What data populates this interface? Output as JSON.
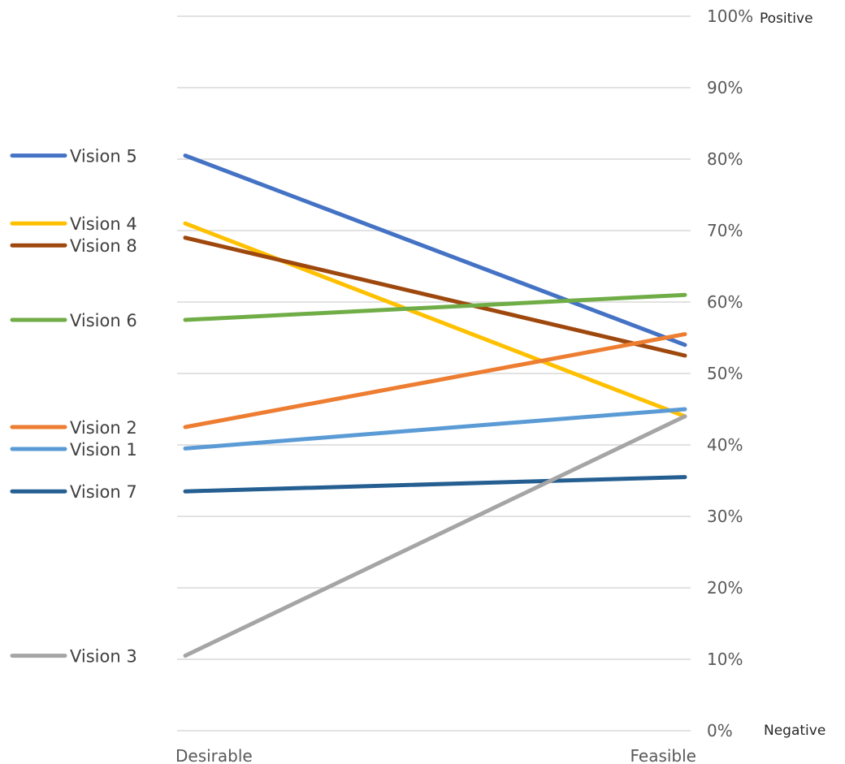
{
  "chart_data": {
    "type": "line",
    "categories": [
      "Desirable",
      "Feasible"
    ],
    "ylim": [
      0,
      100
    ],
    "y_ticks": [
      0,
      10,
      20,
      30,
      40,
      50,
      60,
      70,
      80,
      90,
      100
    ],
    "y_tick_labels": [
      "0%",
      "10%",
      "20%",
      "30%",
      "40%",
      "50%",
      "60%",
      "70%",
      "80%",
      "90%",
      "100%"
    ],
    "top_label": "Positive",
    "bottom_label": "Negative",
    "grid": true,
    "legend_position": "left",
    "series": [
      {
        "name": "Vision 5",
        "values": [
          80.5,
          54
        ],
        "color": "#4472C4"
      },
      {
        "name": "Vision 4",
        "values": [
          71,
          44
        ],
        "color": "#FFC000"
      },
      {
        "name": "Vision 8",
        "values": [
          69,
          52.5
        ],
        "color": "#9E480E"
      },
      {
        "name": "Vision 6",
        "values": [
          57.5,
          61
        ],
        "color": "#70AD47"
      },
      {
        "name": "Vision 2",
        "values": [
          42.5,
          55.5
        ],
        "color": "#ED7D31"
      },
      {
        "name": "Vision 1",
        "values": [
          39.5,
          45
        ],
        "color": "#5B9BD5"
      },
      {
        "name": "Vision 7",
        "values": [
          33.5,
          35.5
        ],
        "color": "#255E91"
      },
      {
        "name": "Vision 3",
        "values": [
          10.5,
          44
        ],
        "color": "#A5A5A5"
      }
    ]
  }
}
